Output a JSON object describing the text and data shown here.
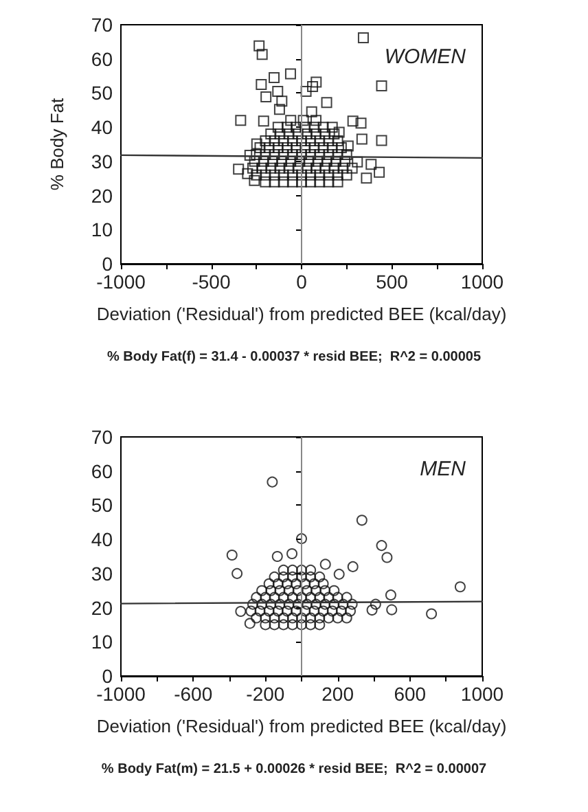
{
  "chart_data": [
    {
      "type": "scatter",
      "ylabel": "% Body Fat",
      "xlabel": "Deviation ('Residual') from predicted BEE (kcal/day)",
      "annotations": [
        "WOMEN",
        "% Body Fat(f) = 31.4 - 0.00037 * resid BEE;  R^2 = 0.00005"
      ],
      "marker": "square",
      "grid": false,
      "xlim": [
        -1000,
        1000
      ],
      "xticks": [
        -1000,
        {
          "value": -750,
          "label": null
        },
        -500,
        {
          "value": -250,
          "label": null
        },
        0,
        {
          "value": 250,
          "label": null
        },
        500,
        {
          "value": 750,
          "label": null
        },
        1000
      ],
      "ylim": [
        0,
        70
      ],
      "yticks": [
        0,
        10,
        20,
        30,
        40,
        50,
        60,
        70
      ],
      "ref_lines": [
        {
          "axis": "x",
          "value": 0,
          "color": "#888888"
        }
      ],
      "series": [
        {
          "color": "#111111",
          "x": [
            -235,
            -218,
            342,
            443,
            443,
            -337,
            430,
            -349,
            -152,
            -61,
            -223,
            -197,
            -132,
            -109,
            25,
            61,
            81,
            139,
            284,
            329,
            334,
            -122,
            -210,
            56,
            -248,
            -286,
            -299,
            -261,
            309,
            385,
            359,
            208,
            258,
            -200,
            -150,
            -100,
            -50,
            0,
            50,
            100,
            150,
            200,
            -250,
            -200,
            -150,
            -100,
            -50,
            0,
            50,
            100,
            150,
            200,
            250,
            -270,
            -220,
            -170,
            -120,
            -70,
            -20,
            30,
            80,
            130,
            180,
            230,
            280,
            -260,
            -210,
            -160,
            -110,
            -60,
            -10,
            40,
            90,
            140,
            190,
            240,
            -250,
            -200,
            -150,
            -100,
            -50,
            0,
            50,
            100,
            150,
            200,
            250,
            -230,
            -180,
            -130,
            -80,
            -30,
            20,
            70,
            120,
            170,
            220,
            -200,
            -150,
            -100,
            -50,
            0,
            50,
            100,
            150,
            200,
            -170,
            -120,
            -70,
            -20,
            30,
            80,
            130,
            180,
            -130,
            -80,
            -30,
            20,
            70,
            120,
            170,
            -60,
            10,
            80
          ],
          "values": [
            63.8,
            61.3,
            66.2,
            52.1,
            36.1,
            42,
            26.8,
            27.7,
            54.5,
            55.6,
            52.5,
            48.9,
            50.5,
            47.6,
            50.5,
            51.9,
            53.2,
            47.2,
            41.8,
            41.2,
            36.5,
            45.2,
            41.8,
            44.5,
            35.1,
            31.8,
            26.4,
            24.4,
            29.8,
            29.1,
            25.1,
            38.5,
            34.5,
            24,
            24,
            24,
            24,
            24,
            24,
            24,
            24,
            24,
            26,
            26,
            26,
            26,
            26,
            26,
            26,
            26,
            26,
            26,
            26,
            28,
            28,
            28,
            28,
            28,
            28,
            28,
            28,
            28,
            28,
            28,
            28,
            30,
            30,
            30,
            30,
            30,
            30,
            30,
            30,
            30,
            30,
            30,
            32,
            32,
            32,
            32,
            32,
            32,
            32,
            32,
            32,
            32,
            32,
            34,
            34,
            34,
            34,
            34,
            34,
            34,
            34,
            34,
            34,
            36,
            36,
            36,
            36,
            36,
            36,
            36,
            36,
            36,
            38,
            38,
            38,
            38,
            38,
            38,
            38,
            38,
            40,
            40,
            40,
            40,
            40,
            40,
            40,
            42,
            42,
            42
          ]
        },
        {
          "type": "line",
          "color": "#333333",
          "marker": "none",
          "x": [
            -1000,
            1000
          ],
          "values": [
            31.8,
            31.0
          ]
        }
      ]
    },
    {
      "type": "scatter",
      "xlabel": "Deviation ('Residual') from predicted BEE (kcal/day)",
      "annotations": [
        "MEN",
        "% Body Fat(m) = 21.5 + 0.00026 * resid BEE;  R^2 = 0.00007"
      ],
      "marker": "circle",
      "grid": false,
      "xlim": [
        -1000,
        1000
      ],
      "xticks": [
        -1000,
        {
          "value": -800,
          "label": null
        },
        -600,
        {
          "value": -400,
          "label": null
        },
        -200,
        {
          "value": 0,
          "label": null
        },
        200,
        {
          "value": 400,
          "label": null
        },
        600,
        {
          "value": 800,
          "label": null
        },
        1000
      ],
      "ylim": [
        0,
        70
      ],
      "yticks": [
        0,
        10,
        20,
        30,
        40,
        50,
        60,
        70
      ],
      "ref_lines": [
        {
          "axis": "x",
          "value": 0,
          "color": "#888888"
        }
      ],
      "series": [
        {
          "color": "#111111",
          "x": [
            -162,
            334,
            0,
            -385,
            -357,
            443,
            473,
            878,
            719,
            494,
            499,
            410,
            390,
            284,
            -134,
            -53,
            132,
            -337,
            -286,
            208,
            -200,
            -150,
            -100,
            -50,
            0,
            50,
            100,
            -250,
            -200,
            -150,
            -100,
            -50,
            0,
            50,
            100,
            150,
            200,
            250,
            -280,
            -230,
            -180,
            -130,
            -80,
            -30,
            20,
            70,
            120,
            170,
            220,
            270,
            -270,
            -220,
            -170,
            -120,
            -70,
            -20,
            30,
            80,
            130,
            180,
            230,
            280,
            -250,
            -200,
            -150,
            -100,
            -50,
            0,
            50,
            100,
            150,
            200,
            250,
            -220,
            -170,
            -120,
            -70,
            -20,
            30,
            80,
            130,
            180,
            -180,
            -130,
            -80,
            -30,
            20,
            70,
            120,
            -150,
            -100,
            -50,
            0,
            50,
            100,
            -100,
            -50,
            0,
            50
          ],
          "values": [
            56.8,
            45.6,
            40.2,
            35.4,
            30,
            38.2,
            34.7,
            26.1,
            18.2,
            23.7,
            19.4,
            21,
            19.3,
            32,
            35,
            35.8,
            32.7,
            18.9,
            15.4,
            29.8,
            15,
            15,
            15,
            15,
            15,
            15,
            15,
            17,
            17,
            17,
            17,
            17,
            17,
            17,
            17,
            17,
            17,
            17,
            19,
            19,
            19,
            19,
            19,
            19,
            19,
            19,
            19,
            19,
            19,
            19,
            21,
            21,
            21,
            21,
            21,
            21,
            21,
            21,
            21,
            21,
            21,
            21,
            23,
            23,
            23,
            23,
            23,
            23,
            23,
            23,
            23,
            23,
            23,
            25,
            25,
            25,
            25,
            25,
            25,
            25,
            25,
            25,
            27,
            27,
            27,
            27,
            27,
            27,
            27,
            29,
            29,
            29,
            29,
            29,
            29,
            31,
            31,
            31,
            31
          ]
        },
        {
          "type": "line",
          "color": "#333333",
          "marker": "none",
          "x": [
            -1000,
            1000
          ],
          "values": [
            21.2,
            21.8
          ]
        }
      ]
    }
  ]
}
